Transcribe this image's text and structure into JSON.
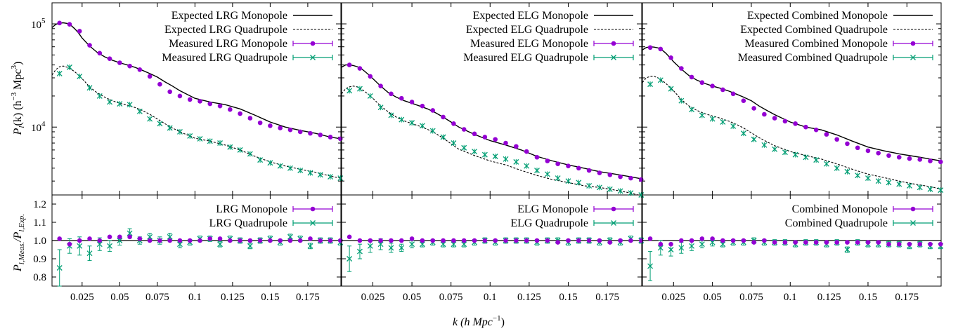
{
  "chart_data": {
    "type": "line",
    "x_label": "k (h Mpc",
    "x_label_sup": "−1",
    "x_label_close": ")",
    "x_range": [
      0.005,
      0.197
    ],
    "x_ticks": [
      {
        "v": 0.025,
        "t": "0.025"
      },
      {
        "v": 0.05,
        "t": "0.05"
      },
      {
        "v": 0.075,
        "t": "0.075"
      },
      {
        "v": 0.1,
        "t": "0.1"
      },
      {
        "v": 0.125,
        "t": "0.125"
      },
      {
        "v": 0.15,
        "t": "0.15"
      },
      {
        "v": 0.175,
        "t": "0.175"
      }
    ],
    "top_y_label": "P",
    "top_y_label_sub": "l",
    "top_y_label_rest": "(k) (h",
    "top_y_label_sup1": "−3",
    "top_y_label_mid": " Mpc",
    "top_y_label_sup2": "3",
    "top_y_label_close": ")",
    "top_y_scale": "log",
    "top_y_range": [
      2200,
      160000
    ],
    "top_y_ticks": [
      {
        "v": 10000,
        "base": "10",
        "exp": "4"
      },
      {
        "v": 100000,
        "base": "10",
        "exp": "5"
      }
    ],
    "bottom_y_label": "P",
    "bottom_y_label_sub1": "l,Meas.",
    "bottom_y_label_mid": "/P",
    "bottom_y_label_sub2": "l,Exp.",
    "bottom_y_range": [
      0.75,
      1.25
    ],
    "bottom_y_ticks": [
      {
        "v": 0.8,
        "t": "0.8"
      },
      {
        "v": 0.9,
        "t": "0.9"
      },
      {
        "v": 1.0,
        "t": "1.0"
      },
      {
        "v": 1.1,
        "t": "1.1"
      },
      {
        "v": 1.2,
        "t": "1.2"
      }
    ],
    "colors": {
      "monopole": "#9400d3",
      "quadrupole": "#009e73",
      "model": "#000000"
    },
    "k": [
      0.01,
      0.01667,
      0.02333,
      0.03,
      0.03667,
      0.04333,
      0.05,
      0.05667,
      0.06333,
      0.07,
      0.07667,
      0.08333,
      0.09,
      0.09667,
      0.10333,
      0.11,
      0.11667,
      0.12333,
      0.13,
      0.13667,
      0.14333,
      0.15,
      0.15667,
      0.16333,
      0.17,
      0.17667,
      0.18333,
      0.19,
      0.19667
    ],
    "panels": [
      {
        "legend": [
          "Expected LRG Monopole",
          "Expected LRG Quadrupole",
          "Measured LRG Monopole",
          "Measured LRG Quadrupole"
        ],
        "ratio_legend": [
          "LRG Monopole",
          "LRG Quadrupole"
        ],
        "model_k": [
          0.005,
          0.0075,
          0.01,
          0.0125,
          0.015,
          0.0175,
          0.02,
          0.0225,
          0.025,
          0.03,
          0.035,
          0.04,
          0.045,
          0.05,
          0.055,
          0.06,
          0.065,
          0.07,
          0.075,
          0.08,
          0.085,
          0.09,
          0.1,
          0.11,
          0.12,
          0.13,
          0.14,
          0.15,
          0.16,
          0.17,
          0.18,
          0.19,
          0.197
        ],
        "model_mono": [
          92000,
          99000,
          102000,
          102500,
          101000,
          97000,
          90000,
          82000,
          73000,
          61000,
          53000,
          48000,
          44500,
          42000,
          40000,
          38000,
          35500,
          33000,
          30500,
          27500,
          25000,
          22500,
          19000,
          17500,
          16500,
          15000,
          13000,
          11200,
          10000,
          9300,
          8700,
          8000,
          7700
        ],
        "model_quad": [
          32000,
          36000,
          38500,
          39000,
          38000,
          36500,
          34500,
          32000,
          29500,
          24500,
          21500,
          19500,
          18000,
          17000,
          16300,
          15500,
          14500,
          13300,
          12000,
          10800,
          9800,
          9000,
          7800,
          7300,
          6700,
          6000,
          5200,
          4600,
          4200,
          3900,
          3650,
          3350,
          3200
        ],
        "mono": [
          102000,
          99000,
          85000,
          62000,
          52000,
          46000,
          42000,
          39000,
          36000,
          31000,
          26000,
          22000,
          20000,
          18500,
          17800,
          16800,
          16000,
          14800,
          13500,
          12200,
          11000,
          10300,
          9800,
          9400,
          9000,
          8700,
          8400,
          8000,
          7700
        ],
        "quad": [
          33000,
          38000,
          31000,
          24000,
          20000,
          17500,
          16800,
          16500,
          14200,
          12000,
          10800,
          9800,
          9000,
          8200,
          7700,
          7300,
          7000,
          6400,
          6000,
          5500,
          4800,
          4500,
          4200,
          4000,
          3800,
          3600,
          3450,
          3300,
          3200
        ],
        "mono_ratio": [
          1.01,
          0.98,
          1.0,
          1.01,
          1.0,
          1.02,
          1.02,
          1.02,
          1.01,
          1.0,
          1.0,
          1.0,
          1.0,
          1.0,
          1.0,
          1.01,
          1.01,
          1.0,
          1.0,
          1.0,
          1.0,
          1.0,
          1.0,
          1.0,
          1.0,
          1.01,
          1.0,
          1.0,
          1.0
        ],
        "mono_err": [
          0.01,
          0.008,
          0.007,
          0.006,
          0.006,
          0.006,
          0.005,
          0.005,
          0.005,
          0.005,
          0.005,
          0.005,
          0.005,
          0.005,
          0.005,
          0.005,
          0.005,
          0.005,
          0.005,
          0.005,
          0.005,
          0.005,
          0.005,
          0.005,
          0.005,
          0.005,
          0.005,
          0.005,
          0.005
        ],
        "quad_ratio": [
          0.85,
          0.97,
          0.97,
          0.93,
          0.98,
          0.97,
          1.0,
          1.04,
          1.0,
          1.02,
          1.0,
          1.02,
          0.98,
          0.99,
          1.01,
          1.01,
          0.98,
          1.01,
          1.0,
          0.97,
          1.0,
          1.01,
          0.99,
          1.02,
          1.01,
          0.97,
          1.0,
          1.0,
          0.99
        ],
        "quad_err": [
          0.1,
          0.04,
          0.05,
          0.04,
          0.035,
          0.03,
          0.025,
          0.025,
          0.02,
          0.02,
          0.02,
          0.02,
          0.02,
          0.015,
          0.015,
          0.015,
          0.015,
          0.015,
          0.015,
          0.015,
          0.015,
          0.015,
          0.015,
          0.015,
          0.015,
          0.015,
          0.015,
          0.015,
          0.015
        ]
      },
      {
        "legend": [
          "Expected ELG Monopole",
          "Expected ELG Quadrupole",
          "Measured ELG Monopole",
          "Measured ELG Quadrupole"
        ],
        "ratio_legend": [
          "ELG Monopole",
          "ELG Quadrupole"
        ],
        "model_k": [
          0.005,
          0.0075,
          0.01,
          0.0125,
          0.015,
          0.0175,
          0.02,
          0.0225,
          0.025,
          0.03,
          0.035,
          0.04,
          0.045,
          0.05,
          0.055,
          0.06,
          0.065,
          0.07,
          0.075,
          0.08,
          0.085,
          0.09,
          0.1,
          0.11,
          0.12,
          0.13,
          0.14,
          0.15,
          0.16,
          0.17,
          0.18,
          0.19,
          0.197
        ],
        "model_mono": [
          38000,
          40000,
          40000,
          39500,
          38500,
          37000,
          34500,
          32000,
          29500,
          25000,
          21500,
          19500,
          18000,
          17000,
          16000,
          15000,
          13800,
          12500,
          11200,
          10000,
          9200,
          8500,
          7400,
          6700,
          6000,
          5200,
          4700,
          4300,
          4000,
          3700,
          3500,
          3300,
          3150
        ],
        "model_quad": [
          21000,
          23500,
          24500,
          25000,
          24500,
          23500,
          22000,
          20500,
          19000,
          16000,
          14000,
          12500,
          11500,
          10800,
          10200,
          9500,
          8700,
          7800,
          6900,
          6100,
          5700,
          5300,
          4700,
          4300,
          3800,
          3400,
          3100,
          2900,
          2700,
          2600,
          2450,
          2300,
          2150
        ],
        "mono": [
          40000,
          37000,
          31000,
          25000,
          21000,
          19000,
          17500,
          16000,
          14500,
          12500,
          10800,
          9500,
          8600,
          8000,
          7600,
          7000,
          6500,
          5800,
          5100,
          4700,
          4400,
          4200,
          4000,
          3800,
          3600,
          3450,
          3300,
          3200,
          3100
        ],
        "quad": [
          22500,
          23500,
          20000,
          15500,
          13000,
          11800,
          11000,
          10300,
          9200,
          8000,
          7000,
          6300,
          5800,
          5400,
          5200,
          4900,
          4600,
          4200,
          3800,
          3500,
          3200,
          3000,
          2900,
          2700,
          2600,
          2500,
          2400,
          2300,
          2200
        ],
        "mono_ratio": [
          1.02,
          1.0,
          1.0,
          1.0,
          1.0,
          1.0,
          1.01,
          1.0,
          1.0,
          1.0,
          1.0,
          1.0,
          1.0,
          1.0,
          1.0,
          1.0,
          1.0,
          1.0,
          1.0,
          1.0,
          0.99,
          1.0,
          1.0,
          1.0,
          1.0,
          0.99,
          1.0,
          1.0,
          1.0
        ],
        "mono_err": [
          0.01,
          0.008,
          0.007,
          0.006,
          0.006,
          0.006,
          0.005,
          0.005,
          0.005,
          0.005,
          0.005,
          0.005,
          0.005,
          0.005,
          0.005,
          0.005,
          0.005,
          0.005,
          0.005,
          0.005,
          0.005,
          0.005,
          0.005,
          0.005,
          0.005,
          0.005,
          0.005,
          0.005,
          0.005
        ],
        "quad_ratio": [
          0.9,
          0.94,
          0.97,
          0.98,
          0.96,
          0.96,
          0.98,
          0.98,
          0.99,
          0.98,
          0.98,
          0.98,
          0.99,
          1.0,
          0.99,
          1.0,
          1.0,
          1.0,
          0.99,
          1.0,
          1.0,
          0.99,
          1.0,
          1.0,
          0.99,
          1.0,
          0.99,
          1.01,
          1.0
        ],
        "quad_err": [
          0.07,
          0.04,
          0.035,
          0.03,
          0.025,
          0.02,
          0.02,
          0.015,
          0.015,
          0.015,
          0.015,
          0.015,
          0.015,
          0.015,
          0.015,
          0.015,
          0.015,
          0.015,
          0.015,
          0.015,
          0.015,
          0.015,
          0.015,
          0.015,
          0.015,
          0.015,
          0.015,
          0.015,
          0.015
        ]
      },
      {
        "legend": [
          "Expected Combined Monopole",
          "Expected Combined Quadrupole",
          "Measured Combined Monopole",
          "Measured Combined Quadrupole"
        ],
        "ratio_legend": [
          "Combined Monopole",
          "Combined Quadrupole"
        ],
        "model_k": [
          0.005,
          0.0075,
          0.01,
          0.0125,
          0.015,
          0.0175,
          0.02,
          0.0225,
          0.025,
          0.03,
          0.035,
          0.04,
          0.045,
          0.05,
          0.055,
          0.06,
          0.065,
          0.07,
          0.075,
          0.08,
          0.085,
          0.09,
          0.1,
          0.11,
          0.12,
          0.13,
          0.14,
          0.15,
          0.16,
          0.17,
          0.18,
          0.19,
          0.197
        ],
        "model_mono": [
          56000,
          59000,
          60000,
          59500,
          58500,
          56000,
          52000,
          47500,
          43000,
          36500,
          31500,
          28500,
          26500,
          25000,
          23800,
          22500,
          21000,
          19500,
          18000,
          16000,
          14500,
          13200,
          11200,
          10000,
          9400,
          8400,
          7300,
          6400,
          5900,
          5500,
          5200,
          4900,
          4700
        ],
        "model_quad": [
          27000,
          30000,
          31000,
          31000,
          30000,
          28500,
          26500,
          24500,
          22500,
          18500,
          16000,
          14500,
          13500,
          12800,
          12200,
          11500,
          10700,
          9800,
          8800,
          7900,
          7200,
          6600,
          5800,
          5300,
          4900,
          4400,
          3900,
          3500,
          3250,
          3000,
          2800,
          2650,
          2500
        ],
        "mono": [
          59000,
          57000,
          47000,
          37000,
          30500,
          27000,
          25000,
          23000,
          21000,
          18000,
          15200,
          13300,
          12200,
          11400,
          10800,
          10000,
          9400,
          8500,
          7600,
          6900,
          6300,
          5900,
          5600,
          5300,
          5100,
          4950,
          4850,
          4700,
          4600
        ],
        "quad": [
          26000,
          28500,
          23500,
          18000,
          14800,
          13000,
          12000,
          11200,
          10200,
          8700,
          7600,
          6700,
          6100,
          5700,
          5400,
          5100,
          4800,
          4400,
          4000,
          3700,
          3400,
          3200,
          3000,
          2900,
          2800,
          2700,
          2600,
          2500,
          2450
        ],
        "mono_ratio": [
          1.01,
          0.98,
          0.98,
          1.0,
          1.0,
          1.01,
          1.01,
          1.0,
          1.0,
          1.0,
          0.99,
          1.0,
          0.99,
          0.99,
          0.99,
          0.99,
          0.99,
          0.99,
          0.99,
          0.99,
          0.99,
          0.99,
          0.99,
          0.98,
          0.98,
          0.98,
          0.98,
          0.98,
          0.98
        ],
        "mono_err": [
          0.01,
          0.008,
          0.007,
          0.006,
          0.006,
          0.006,
          0.005,
          0.005,
          0.005,
          0.005,
          0.005,
          0.005,
          0.005,
          0.005,
          0.005,
          0.005,
          0.005,
          0.005,
          0.005,
          0.005,
          0.005,
          0.005,
          0.005,
          0.005,
          0.005,
          0.005,
          0.005,
          0.005,
          0.005
        ],
        "quad_ratio": [
          0.86,
          0.96,
          0.95,
          0.96,
          0.97,
          0.98,
          0.99,
          0.98,
          0.99,
          0.99,
          1.0,
          0.99,
          0.99,
          0.99,
          0.98,
          0.99,
          0.99,
          0.98,
          0.99,
          0.95,
          0.99,
          0.98,
          0.98,
          0.98,
          0.98,
          0.97,
          0.98,
          0.97,
          0.97
        ],
        "quad_err": [
          0.08,
          0.04,
          0.035,
          0.03,
          0.025,
          0.02,
          0.02,
          0.015,
          0.015,
          0.015,
          0.015,
          0.015,
          0.015,
          0.015,
          0.015,
          0.015,
          0.015,
          0.015,
          0.015,
          0.015,
          0.015,
          0.015,
          0.015,
          0.015,
          0.015,
          0.015,
          0.015,
          0.015,
          0.015
        ]
      }
    ]
  }
}
